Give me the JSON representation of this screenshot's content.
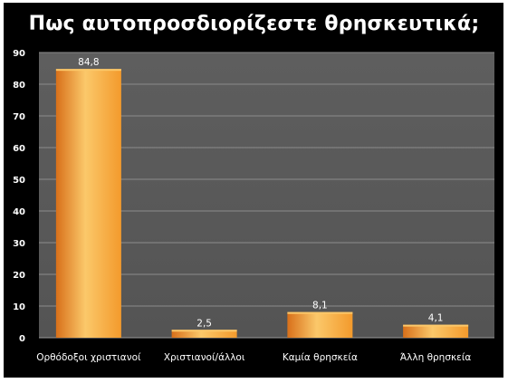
{
  "chart_data": {
    "type": "bar",
    "title": "Πως αυτοπροσδιορίζεστε θρησκευτικά;",
    "categories": [
      "Ορθόδοξοι χριστιανοί",
      "Χριστιανοί/άλλοι",
      "Καμία θρησκεία",
      "Άλλη θρησκεία"
    ],
    "values": [
      84.8,
      2.5,
      8.1,
      4.1
    ],
    "data_labels": [
      "84,8",
      "2,5",
      "8,1",
      "4,1"
    ],
    "ylim": [
      0,
      90
    ],
    "yticks": [
      0,
      10,
      20,
      30,
      40,
      50,
      60,
      70,
      80,
      90
    ],
    "xlabel": "",
    "ylabel": "",
    "grid": true,
    "legend": "none",
    "colors": {
      "background": "#000000",
      "plot_area": "#5a5a5a",
      "bar": "#f39a2c",
      "bar_highlight": "#fbc86a",
      "bar_shadow": "#d8701a",
      "gridline": "#8c8c8c",
      "text": "#ffffff"
    }
  }
}
